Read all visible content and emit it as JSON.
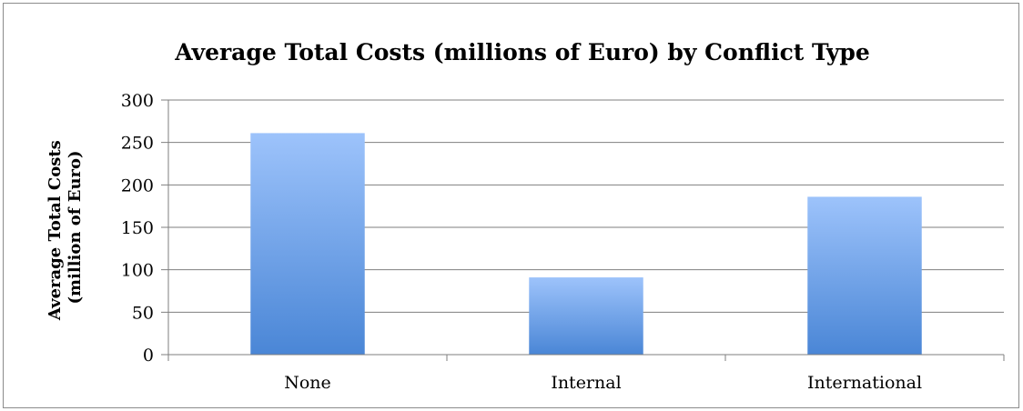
{
  "chart_data": {
    "type": "bar",
    "title": "Average Total Costs (millions of Euro) by Conflict Type",
    "xlabel": "",
    "ylabel_lines": [
      "Average Total Costs",
      "(million of Euro)"
    ],
    "categories": [
      "None",
      "Internal",
      "International"
    ],
    "values": [
      261,
      91,
      186
    ],
    "ylim": [
      0,
      300
    ],
    "yticks": [
      0,
      50,
      100,
      150,
      200,
      250,
      300
    ],
    "grid": true,
    "legend": "none",
    "colors": {
      "bar_top": "#9dc3fb",
      "bar_bottom": "#4a86d6",
      "gridline": "#7f7f7f",
      "axis": "#7f7f7f",
      "frame": "#8c8c8c"
    }
  }
}
